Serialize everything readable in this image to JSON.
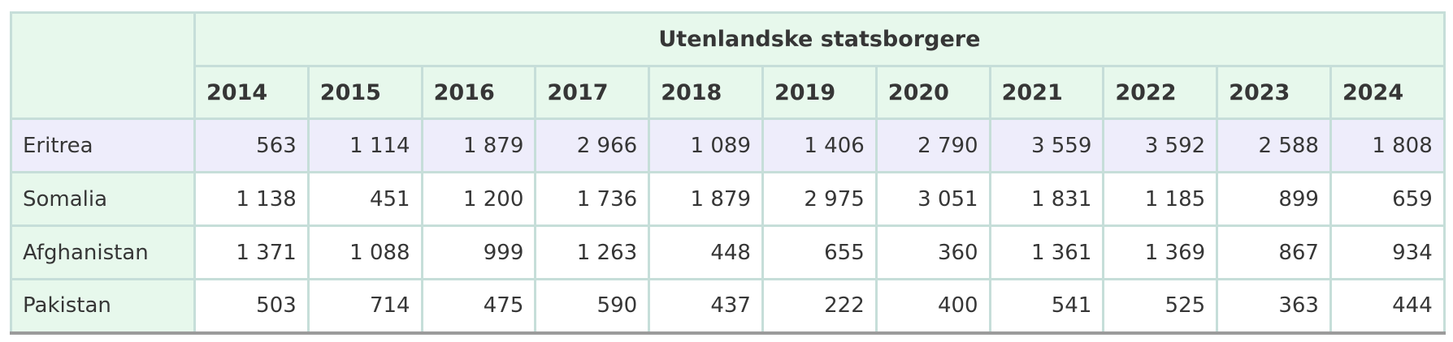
{
  "chart_data": {
    "type": "table",
    "title": "Utenlandske statsborgere",
    "columns": [
      "2014",
      "2015",
      "2016",
      "2017",
      "2018",
      "2019",
      "2020",
      "2021",
      "2022",
      "2023",
      "2024"
    ],
    "rows": [
      {
        "label": "Eritrea",
        "highlighted": true,
        "values": [
          563,
          1114,
          1879,
          2966,
          1089,
          1406,
          2790,
          3559,
          3592,
          2588,
          1808
        ],
        "display": [
          "563",
          "1 114",
          "1 879",
          "2 966",
          "1 089",
          "1 406",
          "2 790",
          "3 559",
          "3 592",
          "2 588",
          "1 808"
        ]
      },
      {
        "label": "Somalia",
        "highlighted": false,
        "values": [
          1138,
          451,
          1200,
          1736,
          1879,
          2975,
          3051,
          1831,
          1185,
          899,
          659
        ],
        "display": [
          "1 138",
          "451",
          "1 200",
          "1 736",
          "1 879",
          "2 975",
          "3 051",
          "1 831",
          "1 185",
          "899",
          "659"
        ]
      },
      {
        "label": "Afghanistan",
        "highlighted": false,
        "values": [
          1371,
          1088,
          999,
          1263,
          448,
          655,
          360,
          1361,
          1369,
          867,
          934
        ],
        "display": [
          "1 371",
          "1 088",
          "999",
          "1 263",
          "448",
          "655",
          "360",
          "1 361",
          "1 369",
          "867",
          "934"
        ]
      },
      {
        "label": "Pakistan",
        "highlighted": false,
        "values": [
          503,
          714,
          475,
          590,
          437,
          222,
          400,
          541,
          525,
          363,
          444
        ],
        "display": [
          "503",
          "714",
          "475",
          "590",
          "437",
          "222",
          "400",
          "541",
          "525",
          "363",
          "444"
        ]
      }
    ],
    "layout": {
      "grid": true,
      "header_bg": "#e7f8ec",
      "highlight_row_bg": "#eeedfb",
      "border_color": "#c6ded9",
      "bottom_border_color": "#9b9b9b",
      "text_color": "#363636"
    }
  }
}
